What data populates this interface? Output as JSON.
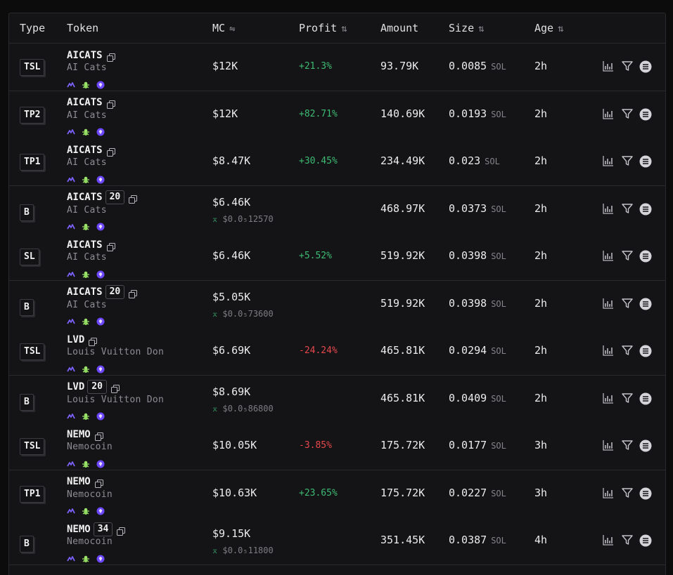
{
  "header": {
    "type": "Type",
    "token": "Token",
    "mc": "MC",
    "profit": "Profit",
    "amount": "Amount",
    "size": "Size",
    "age": "Age"
  },
  "icons": {
    "mc_header": "swap-arrows-icon",
    "sort": "sort-arrows-icon",
    "copy": "copy-icon",
    "chart": "chart-icon",
    "filter": "filter-icon",
    "menu": "menu-icon",
    "token_row": [
      "pump-icon",
      "bug-icon",
      "gem-icon"
    ]
  },
  "colors": {
    "positive": "#3dbb74",
    "negative": "#e5484d",
    "background": "#141416"
  },
  "rows": [
    {
      "type": "TSL",
      "symbol": "AICATS",
      "count": "",
      "name": "AI Cats",
      "mc": "$12K",
      "mc_sub": "",
      "profit": "+21.3%",
      "amount": "93.79K",
      "size": "0.0085",
      "unit": "SOL",
      "age": "2h"
    },
    {
      "type": "TP2",
      "symbol": "AICATS",
      "count": "",
      "name": "AI Cats",
      "mc": "$12K",
      "mc_sub": "",
      "profit": "+82.71%",
      "amount": "140.69K",
      "size": "0.0193",
      "unit": "SOL",
      "age": "2h"
    },
    {
      "type": "TP1",
      "symbol": "AICATS",
      "count": "",
      "name": "AI Cats",
      "mc": "$8.47K",
      "mc_sub": "",
      "profit": "+30.45%",
      "amount": "234.49K",
      "size": "0.023",
      "unit": "SOL",
      "age": "2h"
    },
    {
      "type": "B",
      "symbol": "AICATS",
      "count": "20",
      "name": "AI Cats",
      "mc": "$6.46K",
      "mc_sub": "$0.0₅12570",
      "profit": "",
      "amount": "468.97K",
      "size": "0.0373",
      "unit": "SOL",
      "age": "2h"
    },
    {
      "type": "SL",
      "symbol": "AICATS",
      "count": "",
      "name": "AI Cats",
      "mc": "$6.46K",
      "mc_sub": "",
      "profit": "+5.52%",
      "amount": "519.92K",
      "size": "0.0398",
      "unit": "SOL",
      "age": "2h"
    },
    {
      "type": "B",
      "symbol": "AICATS",
      "count": "20",
      "name": "AI Cats",
      "mc": "$5.05K",
      "mc_sub": "$0.0₅73600",
      "profit": "",
      "amount": "519.92K",
      "size": "0.0398",
      "unit": "SOL",
      "age": "2h"
    },
    {
      "type": "TSL",
      "symbol": "LVD",
      "count": "",
      "name": "Louis Vuitton Don",
      "mc": "$6.69K",
      "mc_sub": "",
      "profit": "-24.24%",
      "amount": "465.81K",
      "size": "0.0294",
      "unit": "SOL",
      "age": "2h"
    },
    {
      "type": "B",
      "symbol": "LVD",
      "count": "20",
      "name": "Louis Vuitton Don",
      "mc": "$8.69K",
      "mc_sub": "$0.0₅86800",
      "profit": "",
      "amount": "465.81K",
      "size": "0.0409",
      "unit": "SOL",
      "age": "2h"
    },
    {
      "type": "TSL",
      "symbol": "NEMO",
      "count": "",
      "name": "Nemocoin",
      "mc": "$10.05K",
      "mc_sub": "",
      "profit": "-3.85%",
      "amount": "175.72K",
      "size": "0.0177",
      "unit": "SOL",
      "age": "3h"
    },
    {
      "type": "TP1",
      "symbol": "NEMO",
      "count": "",
      "name": "Nemocoin",
      "mc": "$10.63K",
      "mc_sub": "",
      "profit": "+23.65%",
      "amount": "175.72K",
      "size": "0.0227",
      "unit": "SOL",
      "age": "3h"
    },
    {
      "type": "B",
      "symbol": "NEMO",
      "count": "34",
      "name": "Nemocoin",
      "mc": "$9.15K",
      "mc_sub": "$0.0₅11800",
      "profit": "",
      "amount": "351.45K",
      "size": "0.0387",
      "unit": "SOL",
      "age": "4h"
    }
  ]
}
